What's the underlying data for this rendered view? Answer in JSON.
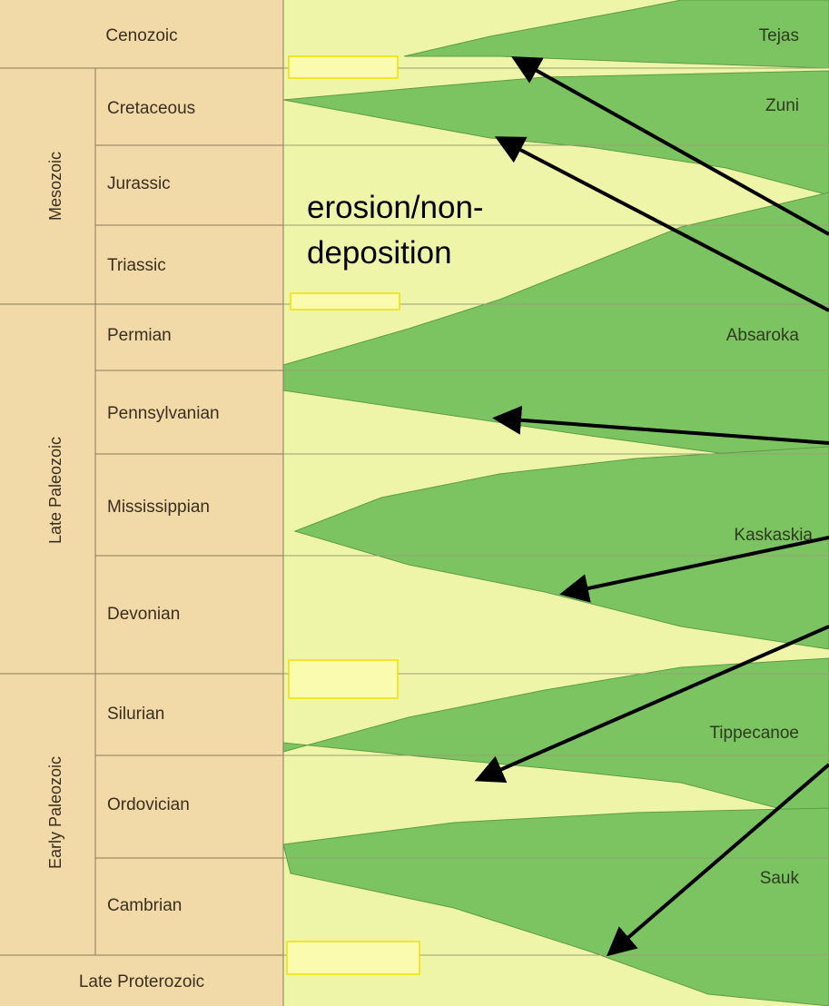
{
  "header_rows": {
    "top": "Cenozoic",
    "bottom": "Late Proterozoic"
  },
  "eras": [
    "Mesozoic",
    "Late Paleozoic",
    "Early Paleozoic"
  ],
  "periods": [
    "Cretaceous",
    "Jurassic",
    "Triassic",
    "Permian",
    "Pennsylvanian",
    "Mississippian",
    "Devonian",
    "Silurian",
    "Ordovician",
    "Cambrian"
  ],
  "sequences": [
    "Tejas",
    "Zuni",
    "Absaroka",
    "Kaskaskia",
    "Tippecanoe",
    "Sauk"
  ],
  "annotation": "erosion/non-deposition"
}
